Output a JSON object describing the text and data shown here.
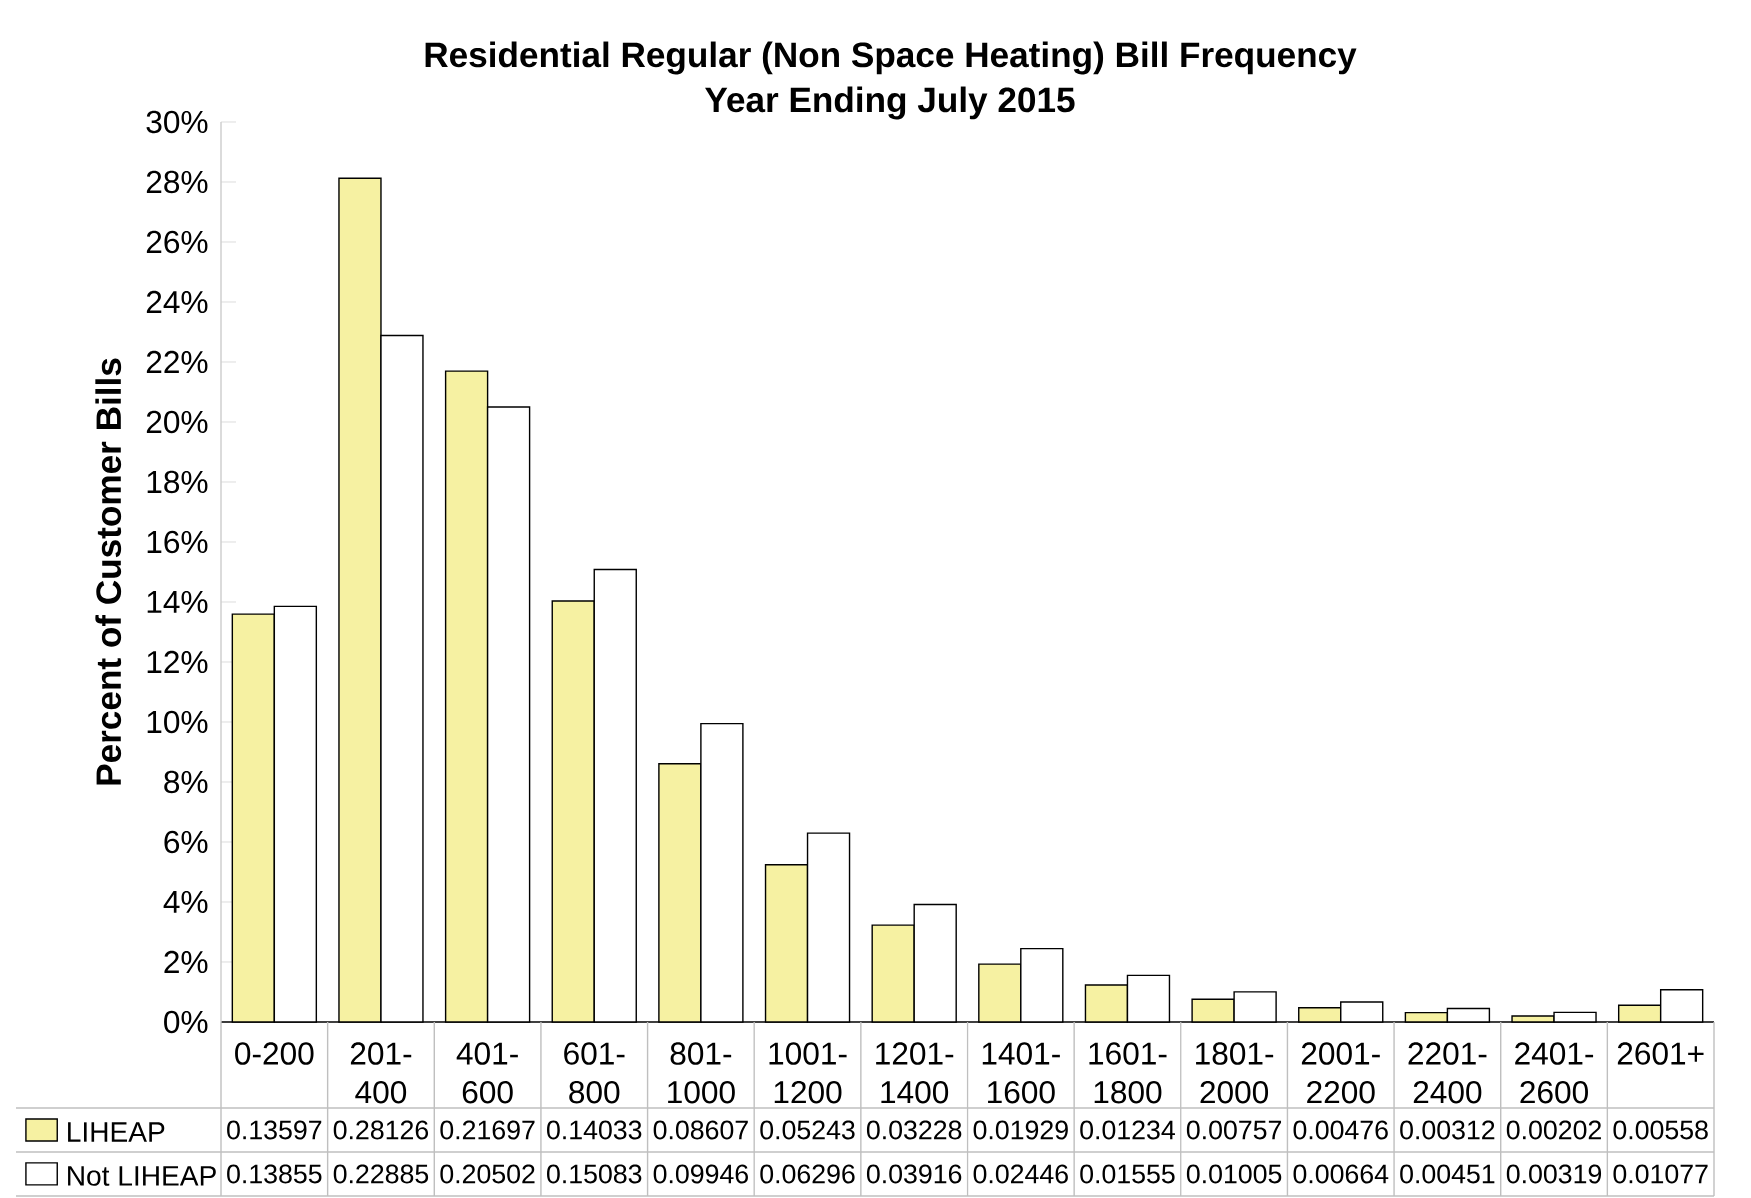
{
  "chart_data": {
    "type": "bar",
    "title": "Residential Regular (Non Space Heating) Bill Frequency",
    "subtitle": "Year Ending July 2015",
    "ylabel": "Percent of Customer Bills",
    "categories": [
      "0-200",
      "201-400",
      "401-600",
      "601-800",
      "801-1000",
      "1001-1200",
      "1201-1400",
      "1401-1600",
      "1601-1800",
      "1801-2000",
      "2001-2200",
      "2201-2400",
      "2401-2600",
      "2601+"
    ],
    "series": [
      {
        "name": "LIHEAP",
        "color": "#f6f1a2",
        "values": [
          0.13597,
          0.28126,
          0.21697,
          0.14033,
          0.08607,
          0.05243,
          0.03228,
          0.01929,
          0.01234,
          0.00757,
          0.00476,
          0.00312,
          0.00202,
          0.00558
        ]
      },
      {
        "name": "Not LIHEAP",
        "color": "#ffffff",
        "values": [
          0.13855,
          0.22885,
          0.20502,
          0.15083,
          0.09946,
          0.06296,
          0.03916,
          0.02446,
          0.01555,
          0.01005,
          0.00664,
          0.00451,
          0.00319,
          0.01077
        ]
      }
    ],
    "ylim": [
      0,
      0.3
    ],
    "yticks": [
      {
        "value": 0,
        "label": "0%"
      },
      {
        "value": 0.02,
        "label": "2%"
      },
      {
        "value": 0.04,
        "label": "4%"
      },
      {
        "value": 0.06,
        "label": "6%"
      },
      {
        "value": 0.08,
        "label": "8%"
      },
      {
        "value": 0.1,
        "label": "10%"
      },
      {
        "value": 0.12,
        "label": "12%"
      },
      {
        "value": 0.14,
        "label": "14%"
      },
      {
        "value": 0.16,
        "label": "16%"
      },
      {
        "value": 0.18,
        "label": "18%"
      },
      {
        "value": 0.2,
        "label": "20%"
      },
      {
        "value": 0.22,
        "label": "22%"
      },
      {
        "value": 0.24,
        "label": "24%"
      },
      {
        "value": 0.26,
        "label": "26%"
      },
      {
        "value": 0.28,
        "label": "28%"
      },
      {
        "value": 0.3,
        "label": "30%"
      }
    ],
    "data_labels": true,
    "legend": "bottom left",
    "grid": false
  }
}
